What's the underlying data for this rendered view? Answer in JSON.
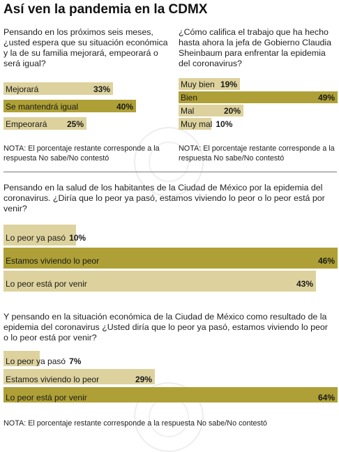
{
  "title": "Así ven la pandemia en la CDMX",
  "colors": {
    "light_bar": "#ddd29d",
    "dark_bar": "#aea036",
    "divider": "#7a7a7a"
  },
  "sections": {
    "s1": {
      "question": "Pensando en los próximos seis meses, ¿usted espera que su situación económica y la de su familia mejorará, empeorará o será igual?",
      "note": "NOTA: El porcentaje restante corresponde a la respuesta No sabe/No contestó"
    },
    "s2": {
      "question": "¿Cómo califica el trabajo que ha hecho hasta ahora la jefa de Gobierno Claudia Sheinbaum para enfrentar la epidemia del coronavirus?",
      "note": "NOTA: El porcentaje restante corresponde a la respuesta No sabe/No contestó"
    },
    "s3": {
      "question": "Pensando en la salud de los habitantes de la Ciudad de México por la epidemia del coronavirus. ¿Diría que lo peor ya pasó, estamos viviendo lo peor o lo peor está por venir?"
    },
    "s4": {
      "question": "Y pensando en la situación económica de la Ciudad de México como resultado de la epidemia del coronavirus ¿Usted diría que lo peor ya pasó, estamos viviendo lo peor o lo peor está por venir?",
      "note": "NOTA: El porcentaje restante corresponde a la respuesta No sabe/No contestó"
    }
  },
  "chart_data": [
    {
      "type": "bar",
      "categories": [
        "Mejorará",
        "Se mantendrá igual",
        "Empeorará"
      ],
      "values": [
        33,
        40,
        25
      ],
      "value_labels": [
        "33%",
        "40%",
        "25%"
      ],
      "unit": "%",
      "xlim": [
        0,
        40
      ]
    },
    {
      "type": "bar",
      "categories": [
        "Muy bien",
        "Bien",
        "Mal",
        "Muy mal"
      ],
      "values": [
        19,
        49,
        20,
        10
      ],
      "value_labels": [
        "19%",
        "49%",
        "20%",
        "10%"
      ],
      "unit": "%",
      "xlim": [
        0,
        49
      ]
    },
    {
      "type": "bar",
      "categories": [
        "Lo peor ya pasó",
        "Estamos viviendo lo peor",
        "Lo peor está por venir"
      ],
      "values": [
        10,
        46,
        43
      ],
      "value_labels": [
        "10%",
        "46%",
        "43%"
      ],
      "unit": "%",
      "xlim": [
        0,
        46
      ]
    },
    {
      "type": "bar",
      "categories": [
        "Lo peor ya pasó",
        "Estamos viviendo lo peor",
        "Lo peor está por venir"
      ],
      "values": [
        7,
        29,
        64
      ],
      "value_labels": [
        "7%",
        "29%",
        "64%"
      ],
      "unit": "%",
      "xlim": [
        0,
        64
      ]
    }
  ]
}
